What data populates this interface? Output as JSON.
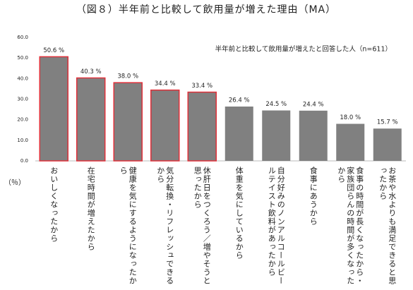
{
  "chart_data": {
    "type": "bar",
    "title": "（図８）半年前と比較して飲用量が増えた理由（MA）",
    "annotation": "半年前と比較して飲用量が増えたと回答した人（n=611）",
    "y_label": "（％）",
    "categories": [
      "おいしくなったから",
      "在宅時間が増えたから",
      "健康を気にするようになったから",
      "気分転換・リフレッシュできるから",
      "休肝日をつくろう／増やそうと思ったから",
      "体重を気にしているから",
      "自分好みのノンアルコールビールテイスト飲料があったから",
      "食事にあうから",
      "食事の時間が長くなったから・家族団らんの時間が多くなったから",
      "お茶や水よりも満足できると思ったから"
    ],
    "values": [
      50.6,
      40.3,
      38.0,
      34.4,
      33.4,
      26.4,
      24.5,
      24.4,
      18.0,
      15.7
    ],
    "value_labels": [
      "50.6 %",
      "40.3 %",
      "38.0 %",
      "34.4 %",
      "33.4 %",
      "26.4 %",
      "24.5 %",
      "24.4 %",
      "18.0 %",
      "15.7 %"
    ],
    "color": "#808080",
    "edgecolors": [
      "#e0303a",
      "#e0303a",
      "#e0303a",
      "#e0303a",
      "#e0303a",
      "none",
      "none",
      "none",
      "none",
      "none"
    ],
    "ylim": [
      0,
      60
    ],
    "yticks": [
      {
        "value": 0,
        "label": "0.0"
      },
      {
        "value": 10,
        "label": "10.0"
      },
      {
        "value": 20,
        "label": "20.0"
      },
      {
        "value": 30,
        "label": "30.0"
      },
      {
        "value": 40,
        "label": "40.0"
      },
      {
        "value": 50,
        "label": "50.0"
      },
      {
        "value": 60,
        "label": "60.0"
      }
    ],
    "grid": false
  }
}
